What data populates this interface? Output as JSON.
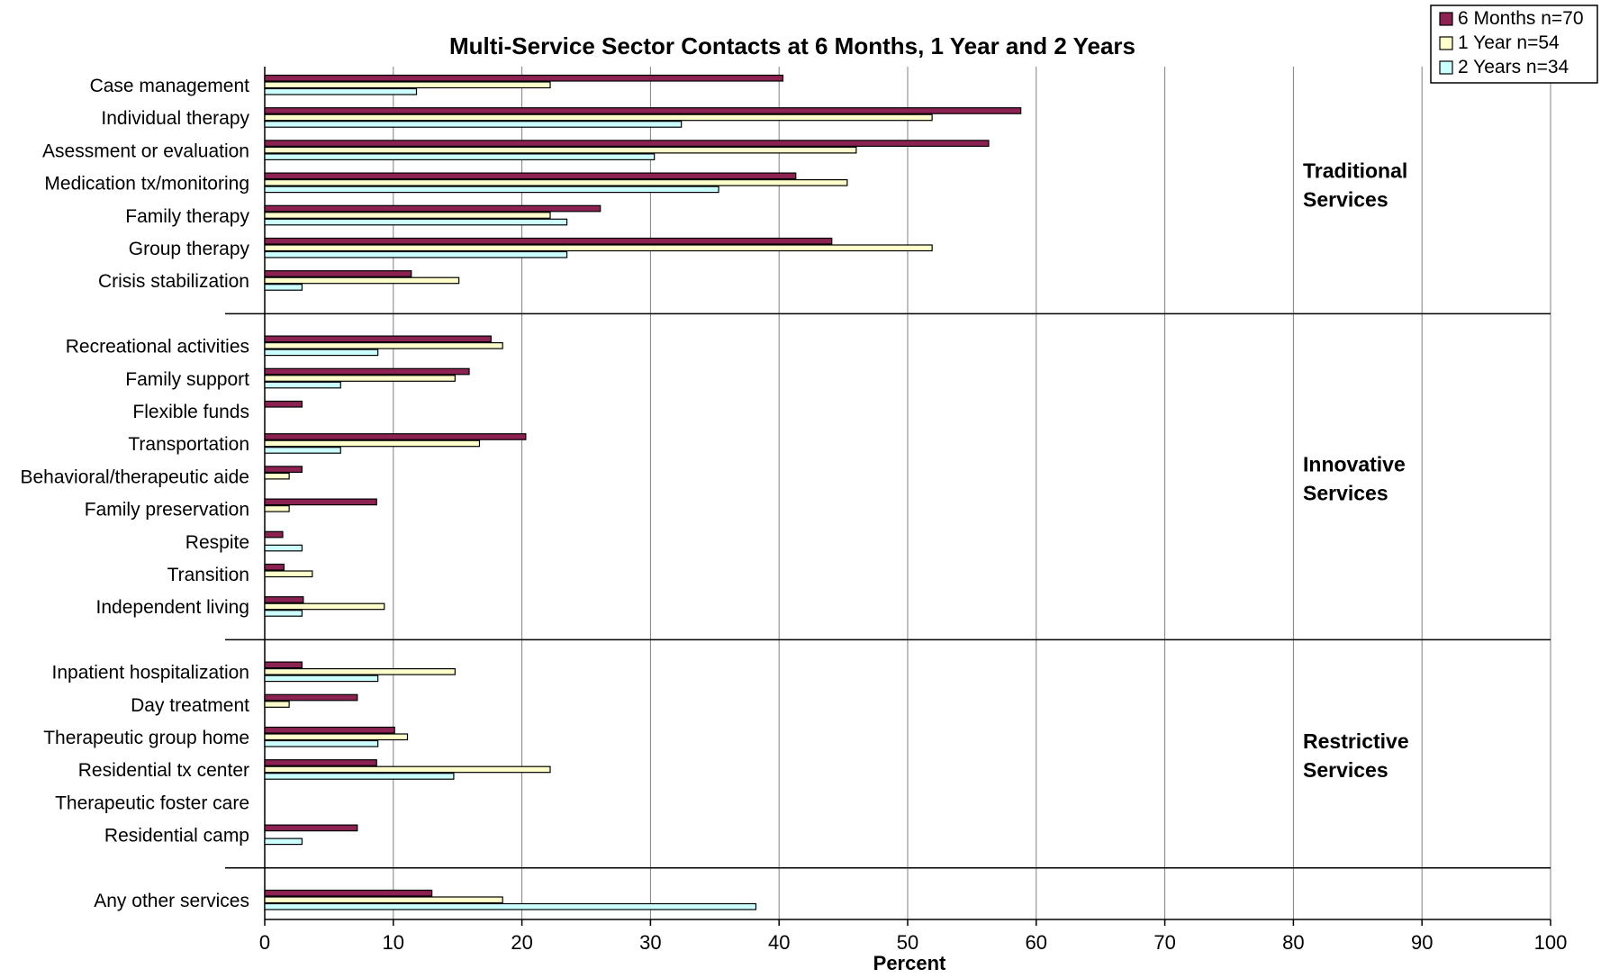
{
  "chart_data": {
    "type": "bar",
    "orientation": "horizontal",
    "title": "Multi-Service Sector Contacts at 6 Months, 1 Year and 2 Years",
    "xlabel": "Percent",
    "ylabel": "",
    "xlim": [
      0,
      100
    ],
    "x_ticks": [
      "0",
      "10",
      "20",
      "30",
      "40",
      "50",
      "60",
      "70",
      "80",
      "90",
      "100"
    ],
    "grid": "vertical",
    "legend_position": "top-right",
    "colors": {
      "6 Months n=70": "#8b2252",
      "1 Year n=54": "#ffffcc",
      "2 Years n=34": "#ccffff",
      "bar_outline": "#000000",
      "grid": "#808080"
    },
    "legend": [
      "6 Months n=70",
      "1 Year n=54",
      "2 Years n=34"
    ],
    "groups": [
      {
        "label_lines": [
          "Traditional",
          "Services"
        ],
        "categories": [
          "Case management",
          "Individual therapy",
          "Asessment or evaluation",
          "Medication tx/monitoring",
          "Family therapy",
          "Group therapy",
          "Crisis stabilization"
        ],
        "series": [
          {
            "name": "6 Months n=70",
            "values": [
              40.3,
              58.8,
              56.3,
              41.3,
              26.1,
              44.1,
              11.4
            ]
          },
          {
            "name": "1 Year n=54",
            "values": [
              22.2,
              51.9,
              46.0,
              45.3,
              22.2,
              51.9,
              15.1
            ]
          },
          {
            "name": "2 Years n=34",
            "values": [
              11.8,
              32.4,
              30.3,
              35.3,
              23.5,
              23.5,
              2.9
            ]
          }
        ]
      },
      {
        "label_lines": [
          "Innovative",
          "Services"
        ],
        "categories": [
          "Recreational activities",
          "Family support",
          "Flexible funds",
          "Transportation",
          "Behavioral/therapeutic aide",
          "Family preservation",
          "Respite",
          "Transition",
          "Independent living"
        ],
        "series": [
          {
            "name": "6 Months n=70",
            "values": [
              17.6,
              15.9,
              2.9,
              20.3,
              2.9,
              8.7,
              1.4,
              1.5,
              3.0
            ]
          },
          {
            "name": "1 Year n=54",
            "values": [
              18.5,
              14.8,
              0,
              16.7,
              1.9,
              1.9,
              0,
              3.7,
              9.3
            ]
          },
          {
            "name": "2 Years n=34",
            "values": [
              8.8,
              5.9,
              0,
              5.9,
              0,
              0,
              2.9,
              0,
              2.9
            ]
          }
        ]
      },
      {
        "label_lines": [
          "Restrictive",
          "Services"
        ],
        "categories": [
          "Inpatient hospitalization",
          "Day treatment",
          "Therapeutic group home",
          "Residential tx center",
          "Therapeutic foster care",
          "Residential camp"
        ],
        "series": [
          {
            "name": "6 Months n=70",
            "values": [
              2.9,
              7.2,
              10.1,
              8.7,
              0,
              7.2
            ]
          },
          {
            "name": "1 Year n=54",
            "values": [
              14.8,
              1.9,
              11.1,
              22.2,
              0,
              0
            ]
          },
          {
            "name": "2 Years n=34",
            "values": [
              8.8,
              0,
              8.8,
              14.7,
              0,
              2.9
            ]
          }
        ]
      },
      {
        "label_lines": [],
        "categories": [
          "Any other services"
        ],
        "series": [
          {
            "name": "6 Months n=70",
            "values": [
              13.0
            ]
          },
          {
            "name": "1 Year n=54",
            "values": [
              18.5
            ]
          },
          {
            "name": "2 Years n=34",
            "values": [
              38.2
            ]
          }
        ]
      }
    ]
  }
}
